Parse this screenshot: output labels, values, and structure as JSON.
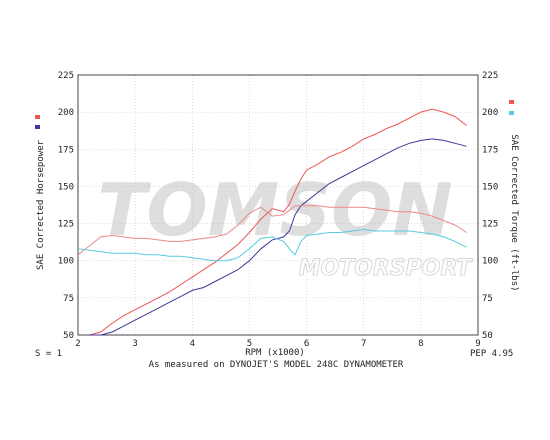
{
  "chart_data": {
    "type": "line",
    "title": "",
    "xlabel": "RPM (x1000)",
    "ylabel_left": "SAE Corrected Horsepower",
    "ylabel_right": "SAE Corrected Torque (ft-lbs)",
    "xlim": [
      2,
      9
    ],
    "ylim": [
      50,
      225
    ],
    "x_ticks": [
      2,
      3,
      4,
      5,
      6,
      7,
      8,
      9
    ],
    "y_ticks": [
      50,
      75,
      100,
      125,
      150,
      175,
      200,
      225
    ],
    "grid": true,
    "legend": "swatches top-left and top-right",
    "footer_left": "S = 1",
    "footer_center": "As measured on DYNOJET'S MODEL 248C DYNAMOMETER",
    "footer_right": "PEP 4.95",
    "watermark_line1": "TOMSON",
    "watermark_line2": "MOTORSPORT",
    "series": [
      {
        "color": "#ee5555",
        "x": [
          2.2,
          2.4,
          2.6,
          2.8,
          3.0,
          3.2,
          3.4,
          3.6,
          3.8,
          4.0,
          4.2,
          4.4,
          4.6,
          4.8,
          5.0,
          5.2,
          5.4,
          5.6,
          5.7,
          5.8,
          5.9,
          6.0,
          6.2,
          6.4,
          6.6,
          6.8,
          7.0,
          7.2,
          7.4,
          7.6,
          7.8,
          8.0,
          8.2,
          8.4,
          8.6,
          8.8
        ],
        "y": [
          46,
          52,
          58,
          63,
          67,
          71,
          75,
          79,
          84,
          89,
          94,
          99,
          105,
          111,
          119,
          128,
          135,
          133,
          138,
          147,
          155,
          161,
          165,
          170,
          173,
          177,
          182,
          185,
          189,
          192,
          196,
          200,
          202,
          200,
          197,
          191
        ]
      },
      {
        "color": "#3a3a9a",
        "x": [
          2.2,
          2.4,
          2.6,
          2.8,
          3.0,
          3.2,
          3.4,
          3.6,
          3.8,
          4.0,
          4.2,
          4.4,
          4.6,
          4.8,
          5.0,
          5.2,
          5.4,
          5.6,
          5.7,
          5.8,
          5.9,
          6.0,
          6.2,
          6.4,
          6.6,
          6.8,
          7.0,
          7.2,
          7.4,
          7.6,
          7.8,
          8.0,
          8.2,
          8.4,
          8.6,
          8.8
        ],
        "y": [
          43,
          48,
          52,
          56,
          60,
          64,
          68,
          72,
          76,
          80,
          82,
          86,
          90,
          94,
          100,
          108,
          114,
          116,
          120,
          131,
          137,
          140,
          146,
          152,
          156,
          160,
          164,
          168,
          172,
          176,
          179,
          181,
          182,
          181,
          179,
          177
        ]
      },
      {
        "color": "#ee8888",
        "x": [
          2.0,
          2.2,
          2.4,
          2.6,
          2.8,
          3.0,
          3.2,
          3.4,
          3.6,
          3.8,
          4.0,
          4.2,
          4.4,
          4.6,
          4.8,
          5.0,
          5.2,
          5.4,
          5.6,
          5.8,
          5.9,
          6.0,
          6.2,
          6.4,
          6.6,
          6.8,
          7.0,
          7.2,
          7.4,
          7.6,
          7.8,
          8.0,
          8.2,
          8.4,
          8.6,
          8.8
        ],
        "y": [
          104,
          110,
          116,
          117,
          116,
          115,
          115,
          114,
          113,
          113,
          114,
          115,
          116,
          118,
          124,
          132,
          136,
          130,
          131,
          137,
          137,
          137,
          137,
          136,
          136,
          136,
          136,
          135,
          134,
          133,
          133,
          132,
          130,
          127,
          124,
          119
        ]
      },
      {
        "color": "#55ccdd",
        "x": [
          2.0,
          2.2,
          2.4,
          2.6,
          2.8,
          3.0,
          3.2,
          3.4,
          3.6,
          3.8,
          4.0,
          4.2,
          4.4,
          4.6,
          4.8,
          5.0,
          5.2,
          5.4,
          5.6,
          5.7,
          5.8,
          5.9,
          6.0,
          6.2,
          6.4,
          6.6,
          6.8,
          7.0,
          7.2,
          7.4,
          7.6,
          7.8,
          8.0,
          8.2,
          8.4,
          8.6,
          8.8
        ],
        "y": [
          108,
          107,
          106,
          105,
          105,
          105,
          104,
          104,
          103,
          103,
          102,
          101,
          100,
          100,
          102,
          108,
          115,
          116,
          113,
          108,
          104,
          113,
          117,
          118,
          119,
          119,
          120,
          121,
          120,
          120,
          120,
          120,
          119,
          118,
          116,
          113,
          109
        ]
      }
    ]
  }
}
